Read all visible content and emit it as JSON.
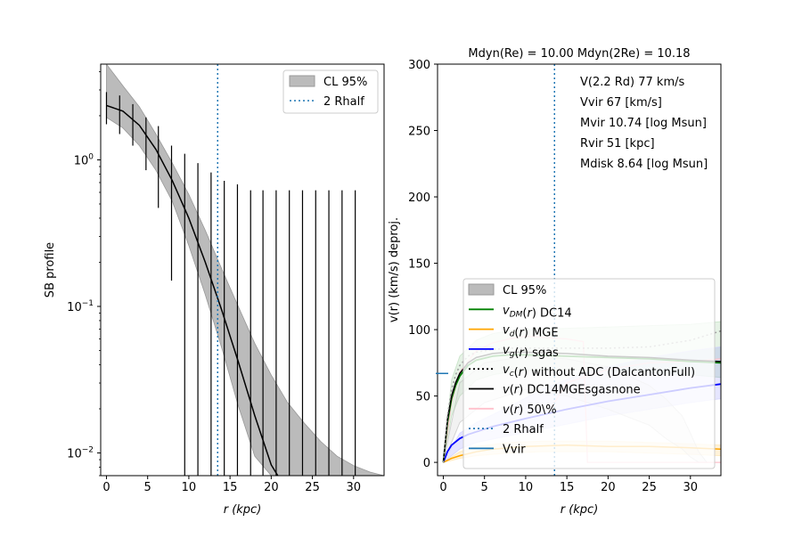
{
  "chart_data": [
    {
      "type": "line",
      "xlabel": "r (kpc)",
      "ylabel": "SB profile",
      "yscale": "log",
      "xlim": [
        -0.7,
        33.7
      ],
      "ylim": [
        0.007,
        4.5
      ],
      "xticks": [
        "0",
        "5",
        "10",
        "15",
        "20",
        "25",
        "30"
      ],
      "yticks": [
        {
          "value": 1,
          "base": "10",
          "exp": "0"
        },
        {
          "value": 0.1,
          "base": "10",
          "exp": "−1"
        },
        {
          "value": 0.01,
          "base": "10",
          "exp": "−2"
        }
      ],
      "legend_position": "top-right",
      "legend": {
        "band": "CL 95%",
        "rhalf": "2 Rhalf"
      },
      "rhalf_x": 13.5,
      "points": {
        "x": [
          0,
          1.6,
          3.2,
          4.8,
          6.3,
          7.9,
          9.5,
          11.1,
          12.7,
          14.3,
          15.9,
          17.5,
          19.0,
          20.6,
          22.2,
          23.8,
          25.4,
          27.0,
          28.6,
          30.2
        ],
        "upper": [
          2.9,
          2.75,
          2.4,
          1.95,
          1.7,
          1.25,
          1.1,
          0.95,
          0.82,
          0.72,
          0.68,
          0.62,
          0.62,
          0.62,
          0.62,
          0.62,
          0.62,
          0.62,
          0.62,
          0.62
        ],
        "lower": [
          1.75,
          1.5,
          1.25,
          0.85,
          0.47,
          0.15,
          0.007,
          0.007,
          0.007,
          0.007,
          0.007,
          0.007,
          0.007,
          0.007,
          0.007,
          0.007,
          0.007,
          0.007,
          0.007,
          0.007
        ]
      },
      "model": {
        "x": [
          0,
          2,
          4,
          6,
          8,
          10,
          12,
          14,
          16,
          18,
          20,
          20.8
        ],
        "y": [
          2.35,
          2.15,
          1.72,
          1.18,
          0.72,
          0.4,
          0.2,
          0.094,
          0.042,
          0.018,
          0.0083,
          0.007
        ]
      },
      "band": {
        "x": [
          0,
          2,
          4,
          6,
          8,
          10,
          12,
          14,
          16,
          18,
          20,
          22,
          24,
          26,
          28,
          30,
          32,
          33.7
        ],
        "upper": [
          4.5,
          3.2,
          2.3,
          1.5,
          0.95,
          0.58,
          0.33,
          0.18,
          0.1,
          0.056,
          0.034,
          0.022,
          0.016,
          0.012,
          0.0095,
          0.0082,
          0.0074,
          0.007
        ],
        "lower": [
          1.95,
          1.65,
          1.25,
          0.85,
          0.52,
          0.26,
          0.12,
          0.052,
          0.021,
          0.0095,
          0.007,
          0.007,
          0.007,
          0.007,
          0.007,
          0.007,
          0.007,
          0.007
        ]
      }
    },
    {
      "type": "line",
      "title": "Mdyn(Re) = 10.00  Mdyn(2Re) = 10.18",
      "xlabel": "r (kpc)",
      "ylabel": "v(r) (km/s) deproj.",
      "xlim": [
        -0.7,
        33.7
      ],
      "ylim": [
        -10,
        300
      ],
      "xticks": [
        "0",
        "5",
        "10",
        "15",
        "20",
        "25",
        "30"
      ],
      "yticks": [
        "0",
        "50",
        "100",
        "150",
        "200",
        "250",
        "300"
      ],
      "annotations": [
        "V(2.2 Rd) 77 km/s",
        "Vvir 67 [km/s]",
        "Mvir 10.74 [log Msun]",
        "Rvir 51 [kpc]",
        "Mdisk 8.64 [log Msun]"
      ],
      "legend_position": "lower-right",
      "legend": [
        {
          "key": "cl",
          "label": "CL 95%",
          "color": "#bbbbbb",
          "style": "patch"
        },
        {
          "key": "dm",
          "label": "DC14",
          "prefix": "v",
          "sub": "DM",
          "suffix": "(r) ",
          "color": "#008000",
          "style": "solid"
        },
        {
          "key": "d",
          "label": "MGE",
          "prefix": "v",
          "sub": "d",
          "suffix": "(r) ",
          "color": "#ffa500",
          "style": "solid"
        },
        {
          "key": "g",
          "label": "sgas",
          "prefix": "v",
          "sub": "g",
          "suffix": "(r) ",
          "color": "#0000ff",
          "style": "solid"
        },
        {
          "key": "c",
          "label": "without ADC (DalcantonFull)",
          "prefix": "v",
          "sub": "c",
          "suffix": "(r) ",
          "color": "#000000",
          "style": "dotted"
        },
        {
          "key": "tot",
          "label": "DC14MGEsgasnone",
          "prefix": "v",
          "sub": "",
          "suffix": "(r) ",
          "color": "#000000",
          "style": "solid"
        },
        {
          "key": "p50",
          "label": "50\\%",
          "prefix": "v",
          "sub": "",
          "suffix": "(r) ",
          "color": "#ffc0cb",
          "style": "solid"
        },
        {
          "key": "rh",
          "label": "2 Rhalf",
          "color": "#1f77b4",
          "style": "dotted"
        },
        {
          "key": "vv",
          "label": "Vvir",
          "color": "#1f77b4",
          "style": "solid"
        }
      ],
      "rhalf_x": 13.5,
      "vvir": 67,
      "vvir_x_end": 0.6,
      "series": {
        "dm": {
          "x": [
            0,
            0.5,
            1,
            1.5,
            2,
            3,
            4,
            6,
            8,
            10,
            15,
            20,
            25,
            30,
            33.7
          ],
          "y": [
            0,
            30,
            48,
            58,
            65,
            73,
            77,
            80,
            81,
            81,
            80,
            79,
            78,
            76,
            75
          ]
        },
        "tot": {
          "x": [
            0,
            0.5,
            1,
            1.5,
            2,
            3,
            4,
            6,
            8,
            10,
            15,
            20,
            25,
            30,
            33.7
          ],
          "y": [
            0,
            32,
            50,
            60,
            67,
            75,
            79,
            82,
            83,
            83,
            82,
            80,
            79,
            77,
            76
          ]
        },
        "c": {
          "x": [
            0,
            0.5,
            1,
            1.5,
            2,
            3,
            4,
            6,
            8,
            10,
            15,
            20,
            25,
            30,
            33.7
          ],
          "y": [
            0,
            35,
            55,
            66,
            73,
            80,
            83,
            85,
            86,
            86,
            86,
            86,
            87,
            92,
            99
          ]
        },
        "g": {
          "x": [
            0,
            0.5,
            1,
            2,
            3,
            4,
            6,
            8,
            10,
            15,
            20,
            25,
            30,
            33.7
          ],
          "y": [
            0,
            8,
            13,
            18,
            21,
            23,
            27,
            30,
            33,
            40,
            46,
            51,
            56,
            59
          ]
        },
        "d": {
          "x": [
            0,
            1,
            2,
            4,
            6,
            8,
            10,
            15,
            20,
            25,
            30,
            33.7
          ],
          "y": [
            0,
            3,
            5,
            8,
            10,
            11,
            12,
            13,
            12,
            12,
            11,
            10
          ]
        },
        "p50": {
          "x": [
            0,
            1,
            2,
            4,
            6,
            8,
            10,
            15,
            17,
            17.5,
            20,
            25,
            30,
            33.7
          ],
          "y": [
            0,
            45,
            68,
            84,
            90,
            93,
            95,
            93,
            91,
            0,
            0,
            0,
            0,
            0
          ]
        },
        "p50b": {
          "x": [
            13,
            15,
            20,
            25,
            30,
            33.7
          ],
          "y": [
            40,
            60,
            70,
            75,
            76,
            78
          ]
        }
      },
      "bands": {
        "dm": {
          "x": [
            0,
            1,
            2,
            4,
            6,
            8,
            10,
            15,
            20,
            25,
            30,
            33.7
          ],
          "upper": [
            0,
            62,
            80,
            92,
            97,
            99,
            100,
            101,
            102,
            103,
            104,
            106
          ],
          "lower": [
            0,
            35,
            50,
            62,
            66,
            68,
            69,
            70,
            69,
            68,
            66,
            64
          ]
        },
        "g": {
          "x": [
            0,
            2,
            4,
            8,
            12,
            16,
            20,
            25,
            30,
            33.7
          ],
          "upper": [
            0,
            22,
            30,
            42,
            55,
            65,
            72,
            79,
            84,
            87
          ],
          "lower": [
            0,
            10,
            15,
            20,
            25,
            30,
            35,
            40,
            45,
            48
          ]
        },
        "d": {
          "x": [
            0,
            2,
            4,
            8,
            12,
            16,
            20,
            25,
            30,
            33.7
          ],
          "upper": [
            0,
            8,
            12,
            15,
            16,
            16,
            16,
            15,
            14,
            13
          ],
          "lower": [
            0,
            3,
            5,
            7,
            8,
            8,
            8,
            7,
            6,
            5
          ]
        },
        "p50": {
          "x": [
            0,
            2,
            5,
            10,
            15,
            20,
            25,
            27,
            29,
            30,
            31,
            32
          ],
          "upper": [
            0,
            60,
            75,
            80,
            78,
            72,
            58,
            48,
            35,
            22,
            8,
            0
          ],
          "lower": [
            0,
            30,
            45,
            55,
            50,
            40,
            28,
            18,
            10,
            4,
            0,
            0
          ]
        }
      }
    }
  ]
}
